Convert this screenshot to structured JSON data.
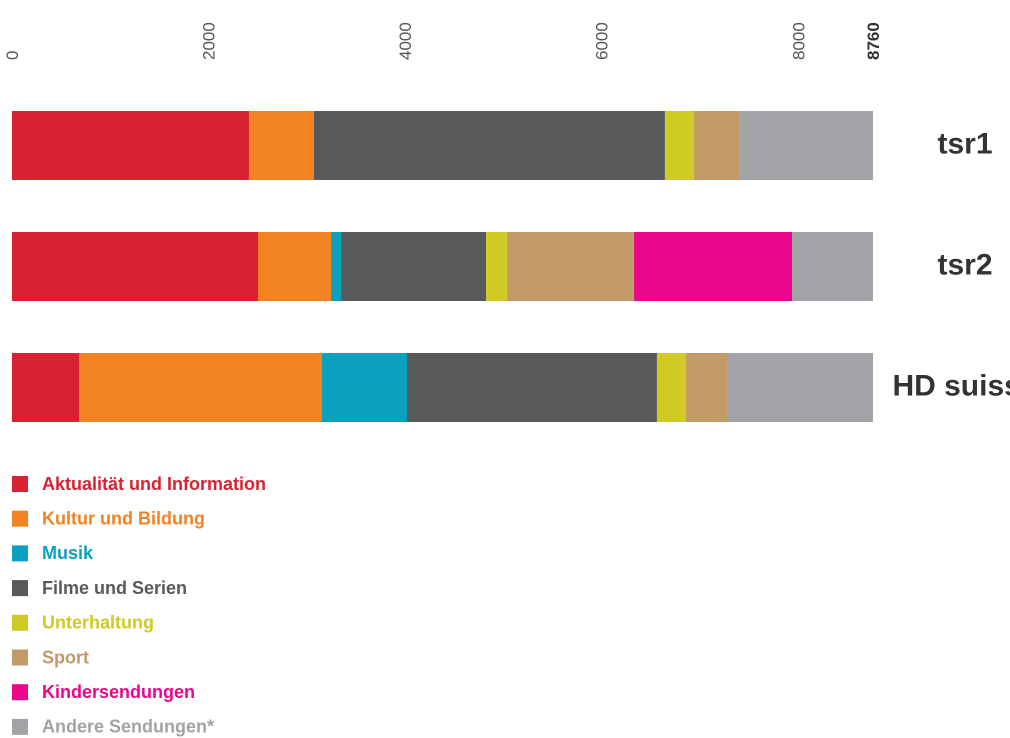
{
  "chart_data": {
    "type": "stacked-bar-horizontal",
    "categories": [
      "tsr1",
      "tsr2",
      "HD suisse"
    ],
    "series": [
      {
        "name": "Aktualität und Information",
        "color": "#d92231",
        "values": [
          2411,
          2503,
          682
        ]
      },
      {
        "name": "Kultur und Bildung",
        "color": "#f28322",
        "values": [
          661,
          743,
          2472
        ]
      },
      {
        "name": "Musik",
        "color": "#0aa0c0",
        "values": [
          0,
          102,
          865
        ]
      },
      {
        "name": "Filme und Serien",
        "color": "#58595b",
        "values": [
          3571,
          1475,
          2543
        ]
      },
      {
        "name": "Unterhaltung",
        "color": "#cfcb24",
        "values": [
          295,
          214,
          295
        ]
      },
      {
        "name": "Sport",
        "color": "#c19a68",
        "values": [
          468,
          1292,
          427
        ]
      },
      {
        "name": "Kindersendungen",
        "color": "#e9068b",
        "values": [
          0,
          1607,
          0
        ]
      },
      {
        "name": "Andere Sendungen*",
        "color": "#a2a3a6",
        "values": [
          1354,
          824,
          1476
        ]
      }
    ],
    "xlim": [
      0,
      8760
    ],
    "xticks": [
      0,
      2000,
      4000,
      6000,
      8000,
      8760
    ],
    "legend": "bottom-left"
  }
}
